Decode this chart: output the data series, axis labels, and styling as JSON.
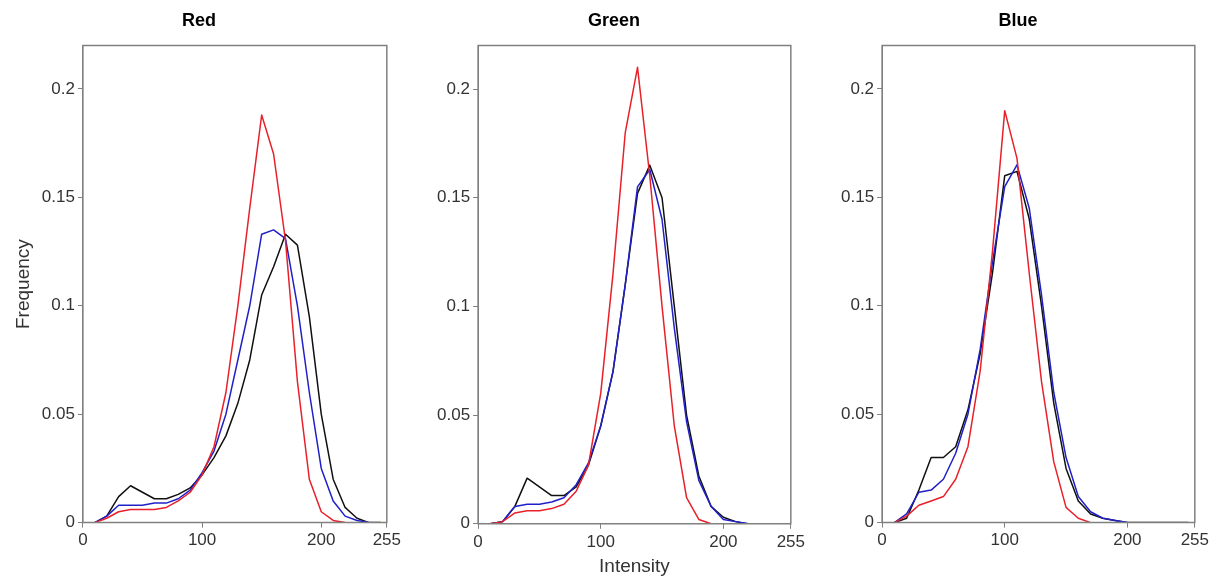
{
  "chart_data": [
    {
      "type": "line",
      "title": "Red",
      "ylabel": "Frequency",
      "x": [
        10,
        20,
        30,
        40,
        50,
        60,
        70,
        80,
        90,
        100,
        110,
        120,
        130,
        140,
        150,
        160,
        170,
        180,
        190,
        200,
        210,
        220,
        230,
        240,
        250
      ],
      "xlim": [
        0,
        255
      ],
      "xticks": [
        0,
        100,
        200,
        255
      ],
      "ylim": [
        0,
        0.22
      ],
      "yticks": [
        0,
        0.05,
        0.1,
        0.15,
        0.2
      ],
      "grid": false,
      "legend": false,
      "marker": "none",
      "line_style": "solid",
      "series": [
        {
          "color": "#e8202a",
          "values": [
            0,
            0.002,
            0.005,
            0.006,
            0.006,
            0.006,
            0.007,
            0.01,
            0.014,
            0.022,
            0.035,
            0.06,
            0.1,
            0.145,
            0.188,
            0.17,
            0.13,
            0.065,
            0.02,
            0.005,
            0.001,
            0,
            null,
            null,
            null
          ]
        },
        {
          "color": "#2020c8",
          "values": [
            0,
            0.003,
            0.008,
            0.008,
            0.008,
            0.009,
            0.009,
            0.011,
            0.015,
            0.023,
            0.033,
            0.05,
            0.075,
            0.1,
            0.133,
            0.135,
            0.131,
            0.1,
            0.06,
            0.025,
            0.01,
            0.003,
            0.001,
            0,
            null
          ]
        },
        {
          "color": "#101010",
          "values": [
            0,
            0.003,
            0.012,
            0.017,
            0.014,
            0.011,
            0.011,
            0.013,
            0.016,
            0.022,
            0.03,
            0.04,
            0.055,
            0.075,
            0.105,
            0.118,
            0.133,
            0.128,
            0.095,
            0.05,
            0.02,
            0.007,
            0.002,
            0,
            0
          ]
        }
      ]
    },
    {
      "type": "line",
      "title": "Green",
      "xlabel": "Intensity",
      "x": [
        10,
        20,
        30,
        40,
        50,
        60,
        70,
        80,
        90,
        100,
        110,
        120,
        130,
        140,
        150,
        160,
        170,
        180,
        190,
        200,
        210,
        220,
        230,
        240,
        250
      ],
      "xlim": [
        0,
        255
      ],
      "xticks": [
        0,
        100,
        200,
        255
      ],
      "ylim": [
        0,
        0.22
      ],
      "yticks": [
        0,
        0.05,
        0.1,
        0.15,
        0.2
      ],
      "grid": false,
      "legend": false,
      "marker": "none",
      "line_style": "solid",
      "series": [
        {
          "color": "#e8202a",
          "values": [
            0,
            0.001,
            0.005,
            0.006,
            0.006,
            0.007,
            0.009,
            0.015,
            0.027,
            0.06,
            0.115,
            0.18,
            0.21,
            0.16,
            0.1,
            0.045,
            0.012,
            0.002,
            0,
            null,
            null,
            null,
            null,
            null,
            null
          ]
        },
        {
          "color": "#2020c8",
          "values": [
            0,
            0.001,
            0.008,
            0.009,
            0.009,
            0.01,
            0.012,
            0.018,
            0.028,
            0.045,
            0.07,
            0.11,
            0.155,
            0.163,
            0.14,
            0.09,
            0.047,
            0.02,
            0.008,
            0.002,
            0.001,
            0,
            null,
            null,
            null
          ]
        },
        {
          "color": "#101010",
          "values": [
            0,
            0.001,
            0.008,
            0.021,
            0.017,
            0.013,
            0.013,
            0.017,
            0.027,
            0.045,
            0.07,
            0.11,
            0.152,
            0.165,
            0.15,
            0.1,
            0.05,
            0.022,
            0.008,
            0.003,
            0.001,
            0,
            0,
            0,
            0
          ]
        }
      ]
    },
    {
      "type": "line",
      "title": "Blue",
      "x": [
        10,
        20,
        30,
        40,
        50,
        60,
        70,
        80,
        90,
        100,
        110,
        120,
        130,
        140,
        150,
        160,
        170,
        180,
        190,
        200,
        210,
        220,
        230,
        240,
        250
      ],
      "xlim": [
        0,
        255
      ],
      "xticks": [
        0,
        100,
        200,
        255
      ],
      "ylim": [
        0,
        0.22
      ],
      "yticks": [
        0,
        0.05,
        0.1,
        0.15,
        0.2
      ],
      "grid": false,
      "legend": false,
      "marker": "none",
      "line_style": "solid",
      "series": [
        {
          "color": "#e8202a",
          "values": [
            0,
            0.003,
            0.008,
            0.01,
            0.012,
            0.02,
            0.035,
            0.07,
            0.125,
            0.19,
            0.168,
            0.115,
            0.065,
            0.028,
            0.007,
            0.002,
            0,
            null,
            null,
            null,
            null,
            null,
            null,
            null,
            null
          ]
        },
        {
          "color": "#2020c8",
          "values": [
            0,
            0.004,
            0.014,
            0.015,
            0.02,
            0.032,
            0.05,
            0.08,
            0.12,
            0.155,
            0.165,
            0.145,
            0.105,
            0.06,
            0.03,
            0.012,
            0.005,
            0.002,
            0.001,
            0,
            null,
            null,
            null,
            null,
            null
          ]
        },
        {
          "color": "#101010",
          "values": [
            0,
            0.002,
            0.015,
            0.03,
            0.03,
            0.035,
            0.052,
            0.078,
            0.115,
            0.16,
            0.162,
            0.14,
            0.1,
            0.055,
            0.025,
            0.01,
            0.004,
            0.002,
            0.001,
            0,
            0,
            0,
            0,
            0,
            0
          ]
        }
      ]
    }
  ]
}
